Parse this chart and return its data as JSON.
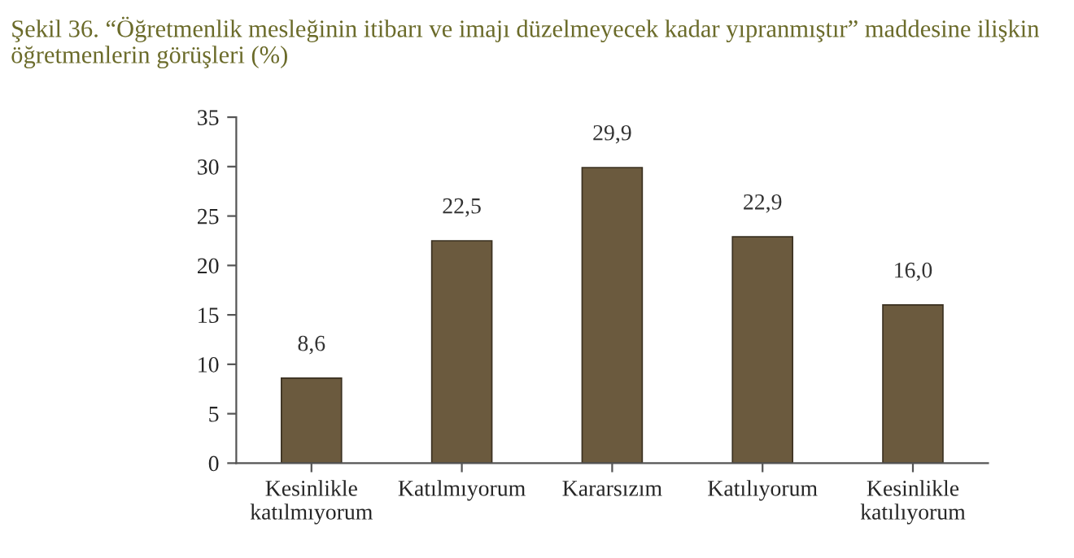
{
  "chart_data": {
    "type": "bar",
    "title": "Şekil 36. “Öğretmenlik mesleğinin itibarı ve imajı düzelmeyecek kadar yıpranmıştır” maddesine ilişkin\nöğretmenlerin görüşleri (%)",
    "categories": [
      "Kesinlikle\nkatılmıyorum",
      "Katılmıyorum",
      "Kararsızım",
      "Katılıyorum",
      "Kesinlikle\nkatılıyorum"
    ],
    "values": [
      8.6,
      22.5,
      29.9,
      22.9,
      16.0
    ],
    "value_labels": [
      "8,6",
      "22,5",
      "29,9",
      "22,9",
      "16,0"
    ],
    "color": "#6b5a3e",
    "ylim": [
      0,
      35
    ],
    "yticks": [
      0,
      5,
      10,
      15,
      20,
      25,
      30,
      35
    ],
    "grid": false
  }
}
